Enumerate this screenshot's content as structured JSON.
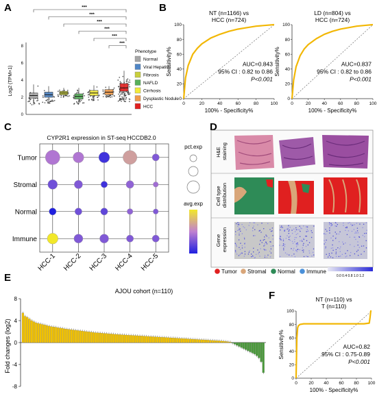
{
  "panels": {
    "A": {
      "label": "A",
      "ylabel": "Log2 (TPM+1)",
      "yticks": [
        "0",
        "2",
        "4",
        "6",
        "8"
      ],
      "sig_marks": [
        "***",
        "***",
        "***",
        "***",
        "***",
        "***"
      ],
      "legend_title": "Phenotype"
    },
    "B": {
      "label": "B"
    },
    "C": {
      "label": "C"
    },
    "D": {
      "label": "D",
      "row_labels": [
        [
          "H&E",
          "staining"
        ],
        [
          "Cell type",
          "distribution"
        ],
        [
          "Gene",
          "expression"
        ]
      ],
      "legend": [
        {
          "name": "Tumor",
          "color": "#e02020"
        },
        {
          "name": "Stromal",
          "color": "#d9a679"
        },
        {
          "name": "Normal",
          "color": "#2e8b57"
        },
        {
          "name": "Immune",
          "color": "#4a90d9"
        }
      ],
      "scale_ticks": "0.0 0.4 0.8 1.0 1.2"
    },
    "E": {
      "label": "E"
    },
    "F": {
      "label": "F"
    }
  },
  "chart_data": [
    {
      "type": "box",
      "panel": "A",
      "ylabel": "Log2 (TPM+1)",
      "ylim": [
        0,
        8
      ],
      "legend_position": "right",
      "series": [
        {
          "name": "Normal",
          "color": "#a6a6a6",
          "q1": 1.9,
          "median": 2.2,
          "q3": 2.5,
          "whisker_low": 1.1,
          "whisker_high": 3.5
        },
        {
          "name": "Viral Hepatitis",
          "color": "#4f86c6",
          "q1": 2.0,
          "median": 2.3,
          "q3": 2.6,
          "whisker_low": 1.3,
          "whisker_high": 3.3
        },
        {
          "name": "Fibrosis",
          "color": "#c9cf3c",
          "q1": 2.3,
          "median": 2.5,
          "q3": 2.7,
          "whisker_low": 2.0,
          "whisker_high": 3.1
        },
        {
          "name": "NAFLD",
          "color": "#57b05a",
          "q1": 1.8,
          "median": 2.1,
          "q3": 2.4,
          "whisker_low": 1.2,
          "whisker_high": 3.1
        },
        {
          "name": "Cirrhosis",
          "color": "#f2ea3a",
          "q1": 2.2,
          "median": 2.5,
          "q3": 2.8,
          "whisker_low": 1.6,
          "whisker_high": 3.4
        },
        {
          "name": "Dysplastic Nodule",
          "color": "#f09a4a",
          "q1": 2.3,
          "median": 2.6,
          "q3": 2.9,
          "whisker_low": 2.0,
          "whisker_high": 3.3
        },
        {
          "name": "HCC",
          "color": "#e02020",
          "q1": 2.7,
          "median": 3.1,
          "q3": 3.6,
          "whisker_low": 1.5,
          "whisker_high": 5.1
        }
      ],
      "comparisons": [
        "***",
        "***",
        "***",
        "***",
        "***",
        "***"
      ]
    },
    {
      "type": "line",
      "panel": "B-left",
      "title": "NT (n=1166) vs HCC (n=724)",
      "xlabel": "100% - Specificity%",
      "ylabel": "Sensitivity%",
      "xlim": [
        0,
        100
      ],
      "ylim": [
        0,
        100
      ],
      "ticks": [
        0,
        20,
        40,
        60,
        80,
        100
      ],
      "color": "#f2b705",
      "x": [
        0,
        2,
        5,
        10,
        15,
        20,
        30,
        40,
        50,
        60,
        70,
        80,
        90,
        100
      ],
      "y": [
        0,
        28,
        45,
        60,
        68,
        74,
        82,
        87,
        91,
        94,
        96,
        98,
        99,
        100
      ],
      "annotations": [
        "AUC=0.843",
        "95% CI : 0.82 to 0.86",
        "P<0.001"
      ]
    },
    {
      "type": "line",
      "panel": "B-right",
      "title": "LD (n=804) vs HCC (n=724)",
      "xlabel": "100% - Specificity%",
      "ylabel": "Sensitivity%",
      "xlim": [
        0,
        100
      ],
      "ylim": [
        0,
        100
      ],
      "ticks": [
        0,
        20,
        40,
        60,
        80,
        100
      ],
      "color": "#f2b705",
      "x": [
        0,
        2,
        5,
        10,
        15,
        20,
        30,
        40,
        50,
        60,
        70,
        80,
        90,
        100
      ],
      "y": [
        0,
        25,
        43,
        58,
        67,
        73,
        81,
        87,
        91,
        94,
        96,
        98,
        99,
        100
      ],
      "annotations": [
        "AUC=0.837",
        "95% CI : 0.82 to 0.86",
        "P<0.001"
      ]
    },
    {
      "type": "scatter",
      "panel": "C",
      "title": "CYP2R1 expression in ST-seq HCCDB2.0",
      "x_categories": [
        "HCC-1",
        "HCC-2",
        "HCC-3",
        "HCC-4",
        "HCC-5"
      ],
      "y_categories": [
        "Tumor",
        "Stromal",
        "Normal",
        "Immune"
      ],
      "size_legend_title": "pct.exp",
      "color_legend_title": "avg.exp",
      "points": [
        {
          "x": "HCC-1",
          "y": "Tumor",
          "pct": 0.9,
          "avg": 0.45
        },
        {
          "x": "HCC-2",
          "y": "Tumor",
          "pct": 0.6,
          "avg": 0.45
        },
        {
          "x": "HCC-3",
          "y": "Tumor",
          "pct": 0.6,
          "avg": 0.1
        },
        {
          "x": "HCC-4",
          "y": "Tumor",
          "pct": 0.85,
          "avg": 0.65
        },
        {
          "x": "HCC-5",
          "y": "Tumor",
          "pct": 0.3,
          "avg": 0.3
        },
        {
          "x": "HCC-1",
          "y": "Stromal",
          "pct": 0.5,
          "avg": 0.25
        },
        {
          "x": "HCC-2",
          "y": "Stromal",
          "pct": 0.4,
          "avg": 0.3
        },
        {
          "x": "HCC-3",
          "y": "Stromal",
          "pct": 0.25,
          "avg": 0.1
        },
        {
          "x": "HCC-4",
          "y": "Stromal",
          "pct": 0.35,
          "avg": 0.35
        },
        {
          "x": "HCC-5",
          "y": "Stromal",
          "pct": 0.15,
          "avg": 0.4
        },
        {
          "x": "HCC-1",
          "y": "Normal",
          "pct": 0.3,
          "avg": 0.0
        },
        {
          "x": "HCC-2",
          "y": "Normal",
          "pct": 0.3,
          "avg": 0.25
        },
        {
          "x": "HCC-3",
          "y": "Normal",
          "pct": 0.3,
          "avg": 0.2
        },
        {
          "x": "HCC-4",
          "y": "Normal",
          "pct": 0.2,
          "avg": 0.35
        },
        {
          "x": "HCC-5",
          "y": "Normal",
          "pct": 0.15,
          "avg": 0.3
        },
        {
          "x": "HCC-1",
          "y": "Immune",
          "pct": 0.6,
          "avg": 1.0
        },
        {
          "x": "HCC-2",
          "y": "Immune",
          "pct": 0.45,
          "avg": 0.3
        },
        {
          "x": "HCC-3",
          "y": "Immune",
          "pct": 0.45,
          "avg": 0.3
        },
        {
          "x": "HCC-4",
          "y": "Immune",
          "pct": 0.3,
          "avg": 0.3
        },
        {
          "x": "HCC-5",
          "y": "Immune",
          "pct": 0.3,
          "avg": 0.3
        }
      ]
    },
    {
      "type": "bar",
      "panel": "E",
      "title": "AJOU cohort (n=110)",
      "ylabel": "Fold changes (log2)",
      "ylim": [
        -8,
        8
      ],
      "yticks": [
        -8,
        -4,
        0,
        4,
        8
      ],
      "positive_color": "#f2c200",
      "negative_color": "#4a9a3a",
      "values": [
        5.4,
        4.8,
        4.6,
        4.3,
        4.0,
        3.8,
        3.6,
        3.5,
        3.4,
        3.3,
        3.2,
        3.1,
        3.0,
        2.9,
        2.85,
        2.8,
        2.7,
        2.65,
        2.6,
        2.5,
        2.45,
        2.4,
        2.35,
        2.3,
        2.25,
        2.2,
        2.15,
        2.1,
        2.05,
        2.0,
        1.95,
        1.9,
        1.85,
        1.8,
        1.78,
        1.75,
        1.7,
        1.68,
        1.65,
        1.6,
        1.58,
        1.55,
        1.5,
        1.48,
        1.45,
        1.42,
        1.4,
        1.37,
        1.35,
        1.32,
        1.3,
        1.27,
        1.25,
        1.22,
        1.2,
        1.17,
        1.15,
        1.12,
        1.1,
        1.07,
        1.05,
        1.02,
        1.0,
        0.97,
        0.95,
        0.92,
        0.9,
        0.87,
        0.85,
        0.82,
        0.8,
        0.77,
        0.75,
        0.72,
        0.7,
        0.67,
        0.65,
        0.62,
        0.6,
        0.57,
        0.55,
        0.52,
        0.5,
        0.47,
        0.45,
        0.42,
        0.4,
        0.37,
        0.35,
        0.32,
        0.3,
        0.25,
        0.2,
        0.15,
        0.1,
        -0.1,
        -0.3,
        -0.5,
        -0.7,
        -0.9,
        -1.1,
        -1.3,
        -1.5,
        -1.7,
        -1.9,
        -2.1,
        -2.4,
        -2.8,
        -3.5,
        -5.5
      ]
    },
    {
      "type": "line",
      "panel": "F",
      "title": "NT (n=110) vs T (n=110)",
      "xlabel": "100% - Specificity%",
      "ylabel": "Sensitivity%",
      "xlim": [
        0,
        100
      ],
      "ylim": [
        0,
        100
      ],
      "ticks": [
        0,
        20,
        40,
        60,
        80,
        100
      ],
      "color": "#f2b705",
      "x": [
        0,
        0,
        1,
        2,
        3,
        5,
        10,
        20,
        40,
        60,
        80,
        90,
        97,
        98,
        99,
        100
      ],
      "y": [
        0,
        4,
        60,
        75,
        78,
        80,
        81,
        81,
        81,
        81,
        81,
        81,
        82,
        90,
        100,
        100
      ],
      "annotations": [
        "AUC=0.82",
        "95% CI : 0.75-0.89",
        "P<0.001"
      ]
    }
  ]
}
